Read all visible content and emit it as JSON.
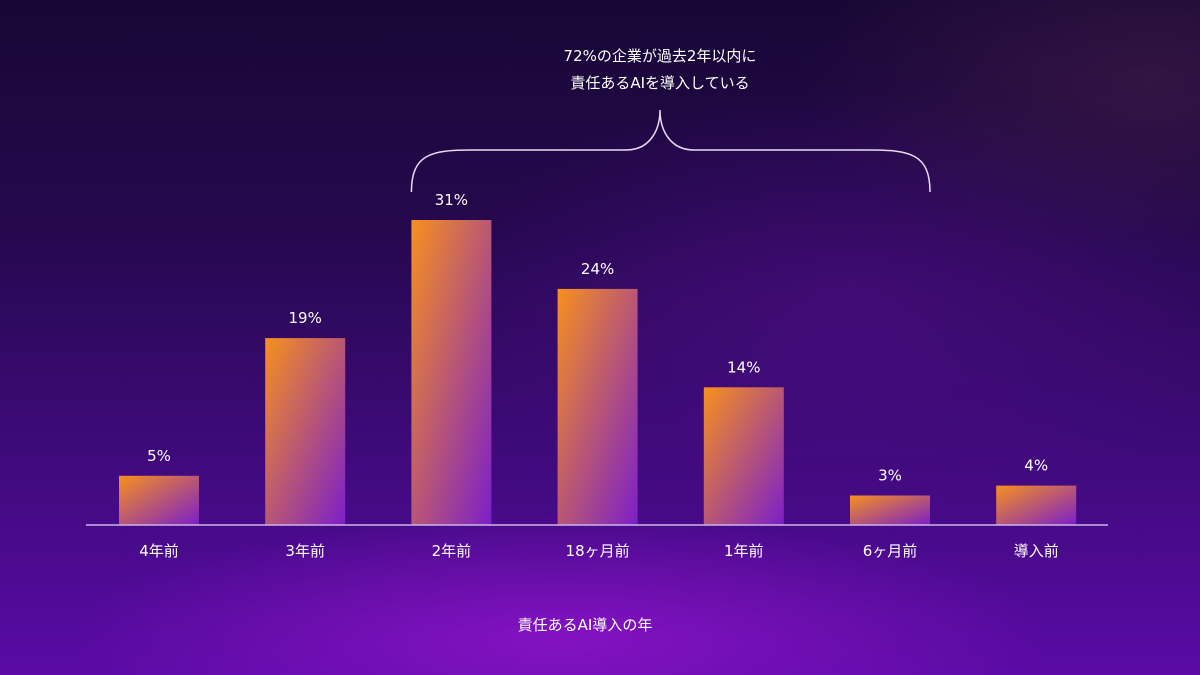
{
  "chart_data": {
    "type": "bar",
    "categories": [
      "4年前",
      "3年前",
      "2年前",
      "18ヶ月前",
      "1年前",
      "6ヶ月前",
      "導入前"
    ],
    "values": [
      5,
      19,
      31,
      24,
      14,
      3,
      4
    ],
    "value_labels": [
      "5%",
      "19%",
      "31%",
      "24%",
      "14%",
      "3%",
      "4%"
    ],
    "unit": "%",
    "xlabel": "責任あるAI導入の年",
    "ylabel": "",
    "ylim": [
      0,
      31
    ],
    "grid": false,
    "legend": "none",
    "annotation": {
      "lines": [
        "72%の企業が過去2年以内に",
        "責任あるAIを導入している"
      ],
      "spans_categories": [
        "2年前",
        "6ヶ月前"
      ]
    },
    "colors": {
      "bar_top": "#f7901e",
      "bar_bottom": "#7b1fc9",
      "axis": "#c9b8e8",
      "text": "#ffffff"
    }
  }
}
